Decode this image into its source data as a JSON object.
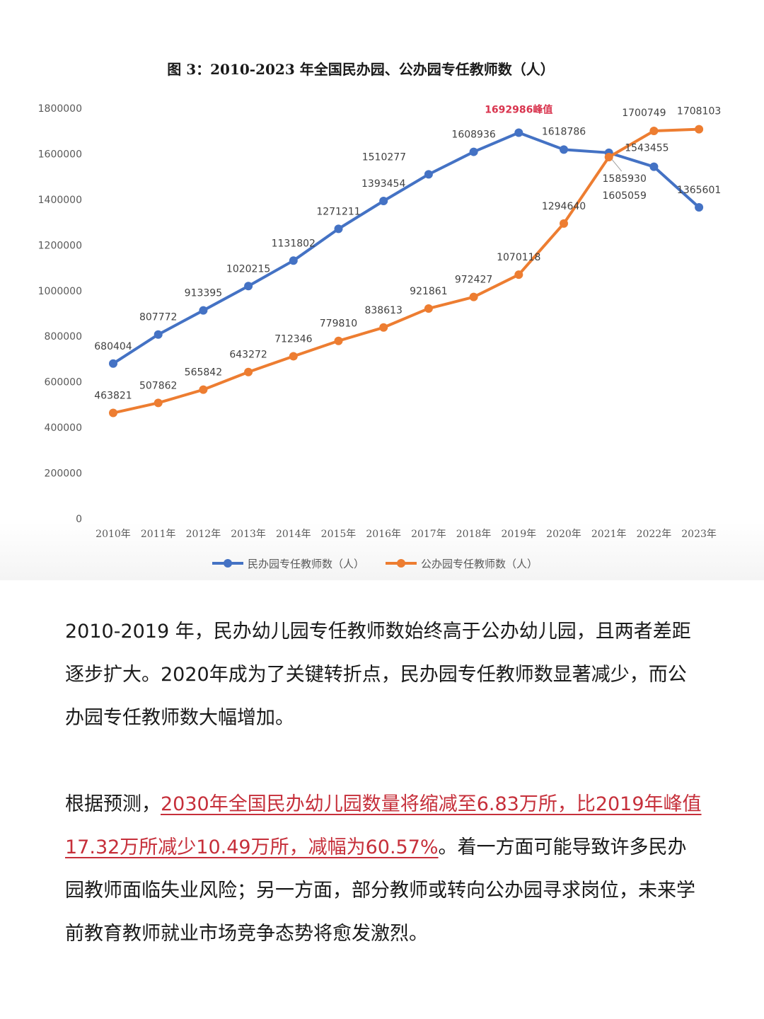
{
  "chart_data": {
    "type": "line",
    "title": "图 3：2010-2023 年全国民办园、公办园专任教师数（人）",
    "categories": [
      "2010年",
      "2011年",
      "2012年",
      "2013年",
      "2014年",
      "2015年",
      "2016年",
      "2017年",
      "2018年",
      "2019年",
      "2020年",
      "2021年",
      "2022年",
      "2023年"
    ],
    "ylim": [
      0,
      1800000
    ],
    "yticks": [
      0,
      200000,
      400000,
      600000,
      800000,
      1000000,
      1200000,
      1400000,
      1600000,
      1800000
    ],
    "grid": false,
    "legend_position": "bottom",
    "series": [
      {
        "name": "民办园专任教师数（人）",
        "color": "#4472c4",
        "values": [
          680404,
          807772,
          913395,
          1020215,
          1131802,
          1271211,
          1393454,
          1510277,
          1608936,
          1692986,
          1618786,
          1605059,
          1543455,
          1365601
        ]
      },
      {
        "name": "公办园专任教师数（人）",
        "color": "#ed7d31",
        "values": [
          463821,
          507862,
          565842,
          643272,
          712346,
          779810,
          838613,
          921861,
          972427,
          1070118,
          1294640,
          1585930,
          1700749,
          1708103
        ]
      }
    ],
    "annotations": [
      {
        "text": "1692986峰值",
        "series": 0,
        "index": 9,
        "color": "#d9344e"
      }
    ]
  },
  "article": {
    "para1": "2010-2019 年，民办幼儿园专任教师数始终高于公办幼儿园，且两者差距逐步扩大。2020年成为了关键转折点，民办园专任教师数显著减少，而公办园专任教师数大幅增加。",
    "para2_lead": "根据预测，",
    "para2_highlight": "2030年全国民办幼儿园数量将缩减至6.83万所，比2019年峰值17.32万所减少10.49万所，减幅为60.57%",
    "para2_rest": "。着一方面可能导致许多民办园教师面临失业风险；另一方面，部分教师或转向公办园寻求岗位，未来学前教育教师就业市场竞争态势将愈发激烈。"
  }
}
